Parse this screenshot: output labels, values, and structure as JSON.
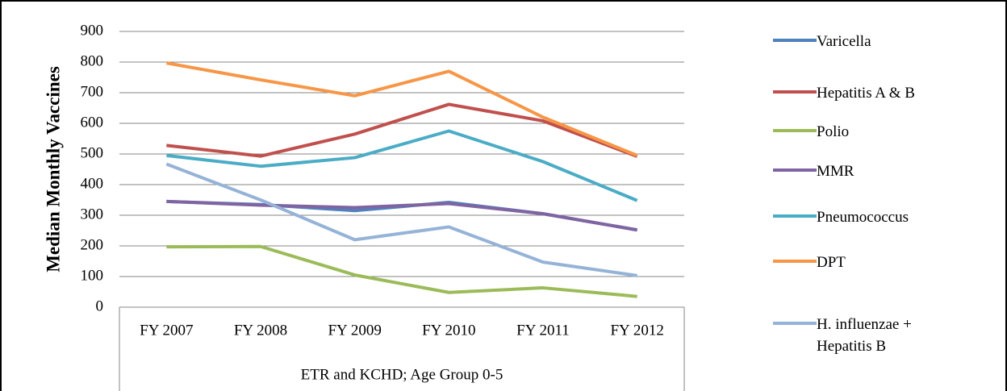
{
  "chart_data": {
    "type": "line",
    "y_label": "Median Monthly Vaccines",
    "group_label": "ETR and KCHD; Age Group 0-5",
    "categories": [
      "FY 2007",
      "FY 2008",
      "FY 2009",
      "FY 2010",
      "FY 2011",
      "FY 2012"
    ],
    "series": [
      {
        "name": "Varicella",
        "color": "#4F81BD",
        "values": [
          345,
          335,
          315,
          342,
          305,
          252
        ]
      },
      {
        "name": "Hepatitis A & B",
        "color": "#C0504D",
        "values": [
          528,
          493,
          565,
          662,
          608,
          492
        ]
      },
      {
        "name": "Polio",
        "color": "#9BBB59",
        "values": [
          197,
          198,
          105,
          48,
          63,
          35
        ]
      },
      {
        "name": "MMR",
        "color": "#8064A2",
        "values": [
          345,
          333,
          325,
          338,
          305,
          252
        ]
      },
      {
        "name": "Pneumococcus",
        "color": "#4BACC6",
        "values": [
          495,
          460,
          488,
          575,
          475,
          348
        ]
      },
      {
        "name": "DPT",
        "color": "#F79646",
        "values": [
          797,
          742,
          690,
          770,
          620,
          495
        ]
      },
      {
        "name": "H. influenzae + Hepatitis B",
        "color": "#95B3D7",
        "values": [
          467,
          350,
          220,
          262,
          147,
          103
        ]
      }
    ],
    "ylim": [
      0,
      900
    ],
    "yticks": [
      0,
      100,
      200,
      300,
      400,
      500,
      600,
      700,
      800,
      900
    ],
    "grid": true,
    "legend": "right"
  }
}
